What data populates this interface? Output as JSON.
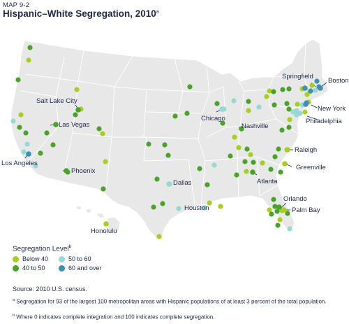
{
  "header": {
    "kicker": "MAP 9-2",
    "title": "Hispanic–White Segregation, 2010",
    "title_note": "a"
  },
  "colors": {
    "land": "#e8e8e8",
    "border": "#ffffff",
    "below_40": "#a6cf1e",
    "40_to_50": "#4aa329",
    "50_to_60": "#98d8d6",
    "60_and_over": "#3d8fb3"
  },
  "legend": {
    "title": "Segregation Level",
    "title_note": "b",
    "items": [
      {
        "label": "Below 40",
        "color_key": "below_40"
      },
      {
        "label": "40 to 50",
        "color_key": "40_to_50"
      },
      {
        "label": "50 to 60",
        "color_key": "50_to_60"
      },
      {
        "label": "60 and over",
        "color_key": "60_and_over"
      }
    ]
  },
  "cities": [
    {
      "name": "Boston",
      "level": "60_and_over"
    },
    {
      "name": "Springfield",
      "level": "60_and_over"
    },
    {
      "name": "New York",
      "level": "60_and_over"
    },
    {
      "name": "Philadelphia",
      "level": "50_to_60"
    },
    {
      "name": "Chicago",
      "level": "50_to_60"
    },
    {
      "name": "Salt Lake City",
      "level": "40_to_50"
    },
    {
      "name": "Las Vegas",
      "level": "40_to_50"
    },
    {
      "name": "Los Angeles",
      "level": "60_and_over"
    },
    {
      "name": "Phoenix",
      "level": "40_to_50"
    },
    {
      "name": "Dallas",
      "level": "50_to_60"
    },
    {
      "name": "Houston",
      "level": "50_to_60"
    },
    {
      "name": "Nashville",
      "level": "40_to_50"
    },
    {
      "name": "Raleigh",
      "level": "below_40"
    },
    {
      "name": "Greenville",
      "level": "below_40"
    },
    {
      "name": "Atlanta",
      "level": "40_to_50"
    },
    {
      "name": "Orlando",
      "level": "40_to_50"
    },
    {
      "name": "Palm Bay",
      "level": "below_40"
    },
    {
      "name": "Honolulu",
      "level": "below_40"
    }
  ],
  "source": "Source: 2010 U.S. census.",
  "notes": [
    {
      "mark": "a",
      "text": "Segregation for 93 of the largest 100 metropolitan areas with Hispanic populations of at least 3 percent of the total population."
    },
    {
      "mark": "b",
      "text": "Where 0 indicates complete integration and 100 indicates complete segregation."
    }
  ]
}
